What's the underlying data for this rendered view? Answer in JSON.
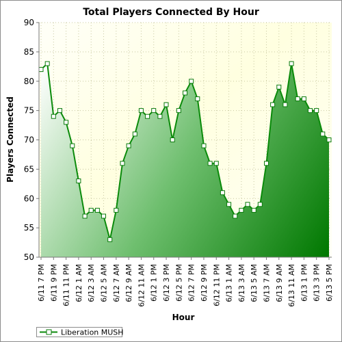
{
  "chart_data": {
    "type": "area",
    "title": "Total Players Connected By Hour",
    "xlabel": "Hour",
    "ylabel": "Players Connected",
    "ylim": [
      50,
      90
    ],
    "yticks": [
      50,
      55,
      60,
      65,
      70,
      75,
      80,
      85,
      90
    ],
    "grid": true,
    "legend_position": "bottom-left",
    "x_tick_labels": [
      "6/11 7 PM",
      "6/11 9 PM",
      "6/11 11 PM",
      "6/12 1 AM",
      "6/12 3 AM",
      "6/12 5 AM",
      "6/12 7 AM",
      "6/12 9 AM",
      "6/12 11 AM",
      "6/12 1 PM",
      "6/12 3 PM",
      "6/12 5 PM",
      "6/12 7 PM",
      "6/12 9 PM",
      "6/12 11 PM",
      "6/13 1 AM",
      "6/13 3 AM",
      "6/13 5 AM",
      "6/13 7 AM",
      "6/13 9 AM",
      "6/13 11 AM",
      "6/13 1 PM",
      "6/13 3 PM",
      "6/13 5 PM"
    ],
    "colors": {
      "fill_light": "#ffffff",
      "fill_dark": "#007a00",
      "line": "#0a8a0a",
      "plot_bg_light": "#ffffd8",
      "plot_bg_dark": "#fffff4"
    },
    "series": [
      {
        "name": "Liberation MUSH",
        "values": [
          82,
          83,
          74,
          75,
          73,
          69,
          63,
          57,
          58,
          58,
          57,
          53,
          58,
          66,
          69,
          71,
          75,
          74,
          75,
          74,
          76,
          70,
          75,
          78,
          80,
          77,
          69,
          66,
          66,
          61,
          59,
          57,
          58,
          59,
          58,
          59,
          66,
          76,
          79,
          76,
          83,
          77,
          77,
          75,
          75,
          71,
          70
        ]
      }
    ]
  }
}
